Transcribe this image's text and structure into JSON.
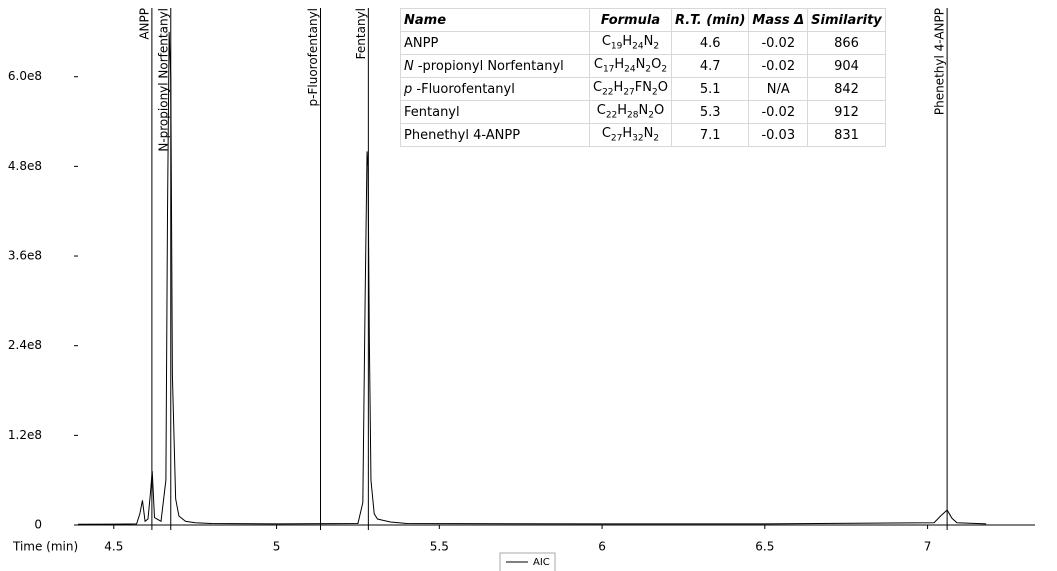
{
  "chart_data": {
    "type": "line",
    "x_label": "Time (min)",
    "xlim": [
      4.39,
      7.33
    ],
    "xticks": [
      4.5,
      5,
      5.5,
      6,
      6.5,
      7
    ],
    "ylim": [
      0,
      700000000
    ],
    "yticks": [
      0,
      {
        "value": 120000000,
        "label": "1.2e8"
      },
      {
        "value": 240000000,
        "label": "2.4e8"
      },
      {
        "value": 360000000,
        "label": "3.6e8"
      },
      {
        "value": 480000000,
        "label": "4.8e8"
      },
      {
        "value": 600000000,
        "label": "6.0e8"
      }
    ],
    "x": [
      4.39,
      4.5,
      4.57,
      4.58,
      4.588,
      4.596,
      4.605,
      4.612,
      4.618,
      4.625,
      4.645,
      4.66,
      4.665,
      4.67,
      4.675,
      4.68,
      4.69,
      4.7,
      4.72,
      4.75,
      4.8,
      5.0,
      5.25,
      5.265,
      5.272,
      5.278,
      5.281,
      5.285,
      5.29,
      5.3,
      5.31,
      5.35,
      5.4,
      6.0,
      6.5,
      7.02,
      7.04,
      7.06,
      7.075,
      7.09,
      7.18
    ],
    "series": [
      {
        "name": "AIC",
        "color": "#000000",
        "values": [
          1000000,
          1200000,
          1500000,
          15000000,
          33000000,
          5000000,
          8000000,
          40000000,
          72000000,
          10000000,
          5000000,
          60000000,
          420000000,
          660000000,
          600000000,
          200000000,
          35000000,
          12000000,
          5000000,
          3000000,
          2000000,
          1500000,
          2000000,
          30000000,
          300000000,
          500000000,
          480000000,
          250000000,
          60000000,
          15000000,
          8000000,
          4000000,
          2000000,
          1500000,
          1500000,
          3000000,
          12000000,
          20000000,
          9000000,
          3000000,
          1500000
        ]
      }
    ],
    "markers": [
      {
        "label": "ANPP",
        "x": 4.617
      },
      {
        "label": "N-propionyl Norfentanyl",
        "x": 4.675
      },
      {
        "label": "p-Fluorofentanyl",
        "x": 5.135
      },
      {
        "label": "Fentanyl",
        "x": 5.282
      },
      {
        "label": "Phenethyl 4-ANPP",
        "x": 7.06
      }
    ]
  },
  "table": {
    "header": [
      "Name",
      "Formula",
      "R.T. (min)",
      "Mass Δ",
      "Similarity"
    ],
    "rows": [
      {
        "name": "ANPP",
        "formula": [
          "C",
          "19",
          "H",
          "24",
          "N",
          "2"
        ],
        "rt": 4.6,
        "mass": -0.02,
        "similarity": 866
      },
      {
        "name": "N -propionyl Norfentanyl",
        "formula": [
          "C",
          "17",
          "H",
          "24",
          "N",
          "2",
          "O",
          "2"
        ],
        "rt": 4.7,
        "mass": -0.02,
        "similarity": 904
      },
      {
        "name": "p -Fluorofentanyl",
        "formula": [
          "C",
          "22",
          "H",
          "27",
          "FN",
          "2",
          "O"
        ],
        "rt": 5.1,
        "mass": "N/A",
        "similarity": 842
      },
      {
        "name": "Fentanyl",
        "formula": [
          "C",
          "22",
          "H",
          "28",
          "N",
          "2",
          "O"
        ],
        "rt": 5.3,
        "mass": -0.02,
        "similarity": 912
      },
      {
        "name": "Phenethyl 4-ANPP",
        "formula": [
          "C",
          "27",
          "H",
          "32",
          "N",
          "2"
        ],
        "rt": 7.1,
        "mass": -0.03,
        "similarity": 831
      }
    ]
  }
}
